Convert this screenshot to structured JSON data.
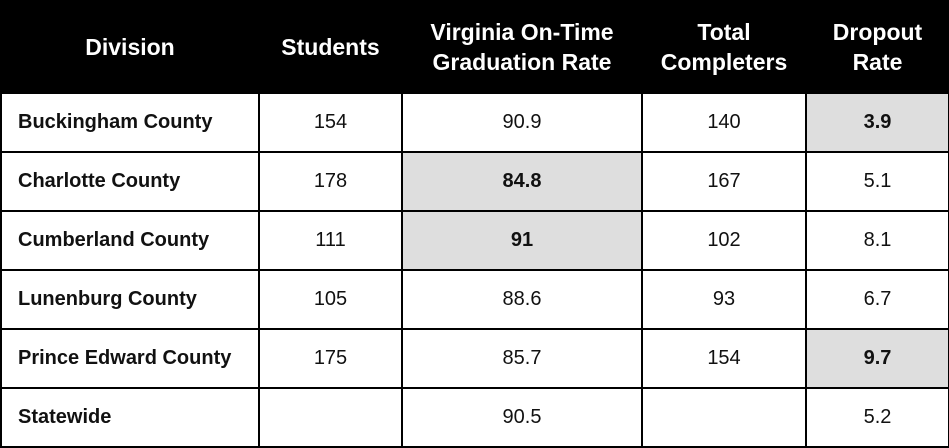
{
  "table": {
    "headers": [
      [
        "Division"
      ],
      [
        "Students"
      ],
      [
        "Virginia On-Time",
        "Graduation Rate"
      ],
      [
        "Total",
        "Completers"
      ],
      [
        "Dropout",
        "Rate"
      ]
    ],
    "rows": [
      {
        "division": "Buckingham County",
        "students": "154",
        "grad_rate": "90.9",
        "completers": "140",
        "dropout": "3.9",
        "highlight": "dropout"
      },
      {
        "division": "Charlotte County",
        "students": "178",
        "grad_rate": "84.8",
        "completers": "167",
        "dropout": "5.1",
        "highlight": "grad_rate"
      },
      {
        "division": "Cumberland County",
        "students": "111",
        "grad_rate": "91",
        "completers": "102",
        "dropout": "8.1",
        "highlight": "grad_rate"
      },
      {
        "division": "Lunenburg County",
        "students": "105",
        "grad_rate": "88.6",
        "completers": "93",
        "dropout": "6.7",
        "highlight": ""
      },
      {
        "division": "Prince Edward County",
        "students": "175",
        "grad_rate": "85.7",
        "completers": "154",
        "dropout": "9.7",
        "highlight": "dropout"
      },
      {
        "division": "Statewide",
        "students": "",
        "grad_rate": "90.5",
        "completers": "",
        "dropout": "5.2",
        "highlight": ""
      }
    ],
    "colors": {
      "header_bg": "#000000",
      "header_text": "#ffffff",
      "highlight_bg": "#dedede",
      "border": "#000000"
    }
  }
}
